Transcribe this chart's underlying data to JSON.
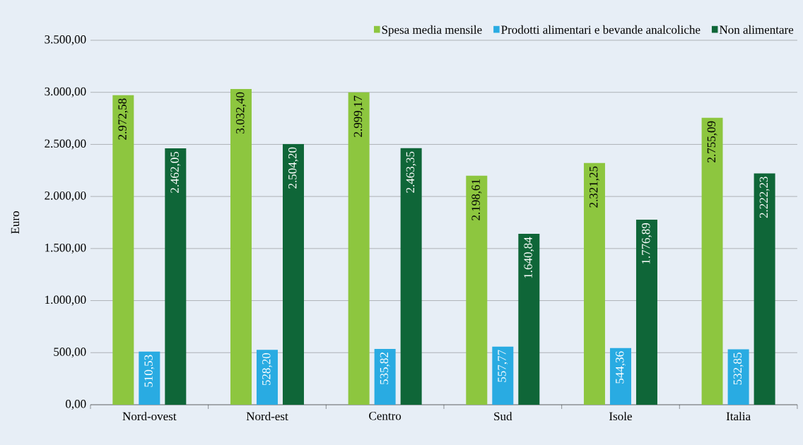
{
  "chart_data": {
    "type": "bar",
    "ylabel": "Euro",
    "categories": [
      "Nord-ovest",
      "Nord-est",
      "Centro",
      "Sud",
      "Isole",
      "Italia"
    ],
    "series": [
      {
        "name": "Spesa media mensile",
        "color": "#8dc63f",
        "values": [
          2972.58,
          3032.4,
          2999.17,
          2198.61,
          2321.25,
          2755.09
        ],
        "value_labels": [
          "2.972,58",
          "3.032,40",
          "2.999,17",
          "2.198,61",
          "2.321,25",
          "2.755,09"
        ]
      },
      {
        "name": "Prodotti alimentari e bevande analcoliche",
        "color": "#29abe2",
        "values": [
          510.53,
          528.2,
          535.82,
          557.77,
          544.36,
          532.85
        ],
        "value_labels": [
          "510,53",
          "528,20",
          "535,82",
          "557,77",
          "544,36",
          "532,85"
        ]
      },
      {
        "name": "Non alimentare",
        "color": "#0f6638",
        "values": [
          2462.05,
          2504.2,
          2463.35,
          1640.84,
          1776.89,
          2222.23
        ],
        "value_labels": [
          "2.462,05",
          "2.504,20",
          "2.463,35",
          "1.640,84",
          "1.776,89",
          "2.222,23"
        ]
      }
    ],
    "ylim": [
      0,
      3500
    ],
    "yticks": [
      {
        "value": 0,
        "label": "0,00"
      },
      {
        "value": 500,
        "label": "500,00"
      },
      {
        "value": 1000,
        "label": "1.000,00"
      },
      {
        "value": 1500,
        "label": "1.500,00"
      },
      {
        "value": 2000,
        "label": "2.000,00"
      },
      {
        "value": 2500,
        "label": "2.500,00"
      },
      {
        "value": 3000,
        "label": "3.000,00"
      },
      {
        "value": 3500,
        "label": "3.500,00"
      }
    ],
    "grid": "y",
    "legend": "top right"
  }
}
